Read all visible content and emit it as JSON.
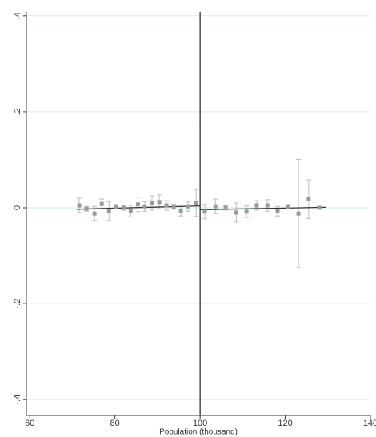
{
  "chart_data": {
    "type": "scatter",
    "x_label": "Population (thousand)",
    "xlim": [
      59.2,
      140
    ],
    "xticks": [
      60,
      80,
      100,
      120,
      140
    ],
    "ylim": [
      -0.433,
      0.408
    ],
    "yticks": [
      {
        "value": -0.4,
        "label": "-.4"
      },
      {
        "value": -0.2,
        "label": "-.2"
      },
      0,
      {
        "value": 0.2,
        "label": ".2"
      },
      {
        "value": 0.4,
        "label": ".4"
      }
    ],
    "grid": true,
    "grid_color": "#d6ecec",
    "cutoff": 100,
    "points": {
      "color": "#9a9a9a",
      "error_color": "#bdbdbd",
      "x": [
        71.6,
        73.3,
        75.2,
        76.9,
        78.6,
        80.3,
        82.0,
        83.7,
        85.4,
        87.0,
        88.7,
        90.4,
        92.1,
        93.8,
        95.5,
        97.2,
        99.1,
        101.1,
        103.6,
        106.0,
        108.5,
        110.9,
        113.3,
        115.8,
        118.2,
        120.7,
        123.1,
        125.5,
        128.0
      ],
      "values": [
        0.005,
        -0.002,
        -0.012,
        0.008,
        -0.007,
        0.002,
        0,
        -0.007,
        0.007,
        0.003,
        0.01,
        0.012,
        0.005,
        0.002,
        -0.007,
        0.003,
        0.01,
        -0.008,
        0.003,
        0,
        -0.01,
        -0.008,
        0.005,
        0.005,
        -0.007,
        0.002,
        -0.012,
        0.018,
        0
      ],
      "errors": [
        0.015,
        0.005,
        0.015,
        0.01,
        0.02,
        0.005,
        0.005,
        0.012,
        0.015,
        0.01,
        0.015,
        0.015,
        0.01,
        0.005,
        0.01,
        0.01,
        0.028,
        0.015,
        0.015,
        0.005,
        0.02,
        0.012,
        0.01,
        0.012,
        0.01,
        0.005,
        0.113,
        0.04,
        0.003
      ]
    },
    "fits": [
      {
        "color": "#333333",
        "x": [
          71,
          100
        ],
        "values": [
          -0.003,
          0.004
        ]
      },
      {
        "color": "#333333",
        "x": [
          100,
          129.5
        ],
        "values": [
          -0.004,
          0.001
        ]
      }
    ]
  }
}
